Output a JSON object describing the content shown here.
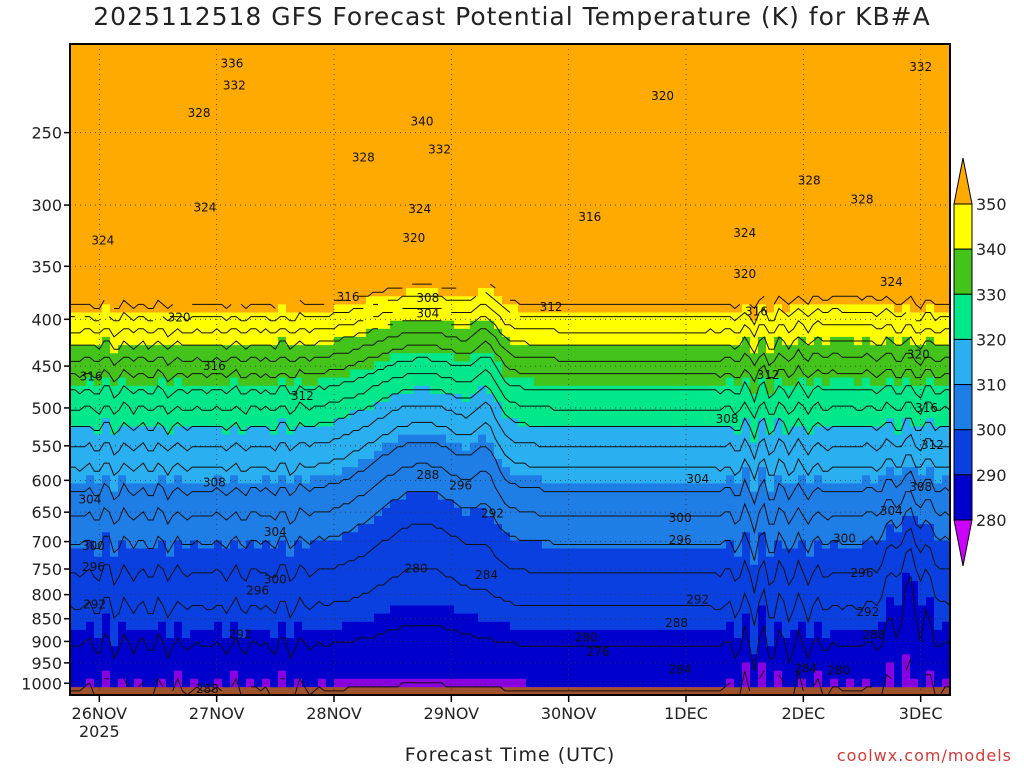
{
  "chart_data": {
    "type": "heatmap",
    "title": "2025112518 GFS Forecast Potential Temperature (K) for KB#A",
    "xlabel": "Forecast Time (UTC)",
    "ylabel": "",
    "x_ticks": [
      {
        "label": "26NOV",
        "sublabel": "2025",
        "day": 0
      },
      {
        "label": "27NOV",
        "day": 1
      },
      {
        "label": "28NOV",
        "day": 2
      },
      {
        "label": "29NOV",
        "day": 3
      },
      {
        "label": "30NOV",
        "day": 4
      },
      {
        "label": "1DEC",
        "day": 5
      },
      {
        "label": "2DEC",
        "day": 6
      },
      {
        "label": "3DEC",
        "day": 7
      }
    ],
    "x_range_days": [
      -0.25,
      7.25
    ],
    "y_axis": {
      "scale": "log-pressure",
      "unit": "hPa",
      "range": [
        1030,
        200
      ],
      "reversed": true,
      "ticks": [
        250,
        300,
        350,
        400,
        450,
        500,
        550,
        600,
        650,
        700,
        750,
        800,
        850,
        900,
        950,
        1000
      ]
    },
    "colorbar": {
      "levels": [
        280,
        290,
        300,
        310,
        320,
        330,
        340,
        350
      ],
      "colors": [
        "#cc00ff",
        "#8a00e0",
        "#0000cc",
        "#0a3fe0",
        "#1f7ee6",
        "#2ab0f0",
        "#00e88a",
        "#44c41a",
        "#ffff00",
        "#ffaa00"
      ],
      "extend": "both"
    },
    "contour_interval_k": 4,
    "contour_labels": [
      {
        "text": "336",
        "day": 1.13,
        "p": 210
      },
      {
        "text": "332",
        "day": 1.15,
        "p": 222
      },
      {
        "text": "328",
        "day": 0.85,
        "p": 238
      },
      {
        "text": "324",
        "day": 0.03,
        "p": 328
      },
      {
        "text": "324",
        "day": 0.9,
        "p": 302
      },
      {
        "text": "320",
        "day": 0.68,
        "p": 398
      },
      {
        "text": "316",
        "day": -0.07,
        "p": 462
      },
      {
        "text": "316",
        "day": 0.98,
        "p": 450
      },
      {
        "text": "312",
        "day": 1.73,
        "p": 485
      },
      {
        "text": "316",
        "day": 2.12,
        "p": 378
      },
      {
        "text": "308",
        "day": 0.98,
        "p": 603
      },
      {
        "text": "304",
        "day": -0.08,
        "p": 630
      },
      {
        "text": "304",
        "day": 1.5,
        "p": 683
      },
      {
        "text": "300",
        "day": -0.05,
        "p": 708
      },
      {
        "text": "296",
        "day": -0.05,
        "p": 746
      },
      {
        "text": "296",
        "day": 1.35,
        "p": 792
      },
      {
        "text": "300",
        "day": 1.5,
        "p": 770
      },
      {
        "text": "292",
        "day": -0.04,
        "p": 820
      },
      {
        "text": "292",
        "day": 1.2,
        "p": 885
      },
      {
        "text": "288",
        "day": 0.92,
        "p": 1015
      },
      {
        "text": "328",
        "day": 2.25,
        "p": 266
      },
      {
        "text": "332",
        "day": 2.9,
        "p": 261
      },
      {
        "text": "340",
        "day": 2.75,
        "p": 243
      },
      {
        "text": "324",
        "day": 2.73,
        "p": 303
      },
      {
        "text": "320",
        "day": 2.68,
        "p": 326
      },
      {
        "text": "308",
        "day": 2.8,
        "p": 379
      },
      {
        "text": "304",
        "day": 2.8,
        "p": 394
      },
      {
        "text": "288",
        "day": 2.8,
        "p": 592
      },
      {
        "text": "296",
        "day": 3.08,
        "p": 608
      },
      {
        "text": "292",
        "day": 3.35,
        "p": 652
      },
      {
        "text": "280",
        "day": 2.7,
        "p": 749
      },
      {
        "text": "284",
        "day": 3.3,
        "p": 761
      },
      {
        "text": "320",
        "day": 4.8,
        "p": 228
      },
      {
        "text": "316",
        "day": 4.18,
        "p": 309
      },
      {
        "text": "312",
        "day": 3.85,
        "p": 388
      },
      {
        "text": "304",
        "day": 5.1,
        "p": 598
      },
      {
        "text": "308",
        "day": 5.35,
        "p": 514
      },
      {
        "text": "300",
        "day": 4.95,
        "p": 660
      },
      {
        "text": "296",
        "day": 4.95,
        "p": 697
      },
      {
        "text": "292",
        "day": 5.1,
        "p": 810
      },
      {
        "text": "288",
        "day": 4.92,
        "p": 859
      },
      {
        "text": "280",
        "day": 4.15,
        "p": 891
      },
      {
        "text": "276",
        "day": 4.25,
        "p": 924
      },
      {
        "text": "284",
        "day": 4.95,
        "p": 966
      },
      {
        "text": "328",
        "day": 6.05,
        "p": 282
      },
      {
        "text": "324",
        "day": 5.5,
        "p": 322
      },
      {
        "text": "320",
        "day": 5.5,
        "p": 357
      },
      {
        "text": "316",
        "day": 5.6,
        "p": 392
      },
      {
        "text": "312",
        "day": 5.7,
        "p": 460
      },
      {
        "text": "332",
        "day": 7.0,
        "p": 212
      },
      {
        "text": "328",
        "day": 6.5,
        "p": 296
      },
      {
        "text": "324",
        "day": 6.75,
        "p": 364
      },
      {
        "text": "320",
        "day": 6.98,
        "p": 437
      },
      {
        "text": "316",
        "day": 7.05,
        "p": 500
      },
      {
        "text": "312",
        "day": 7.1,
        "p": 549
      },
      {
        "text": "308",
        "day": 7.0,
        "p": 610
      },
      {
        "text": "304",
        "day": 6.75,
        "p": 648
      },
      {
        "text": "300",
        "day": 6.35,
        "p": 695
      },
      {
        "text": "296",
        "day": 6.5,
        "p": 758
      },
      {
        "text": "292",
        "day": 6.55,
        "p": 836
      },
      {
        "text": "288",
        "day": 6.6,
        "p": 886
      },
      {
        "text": "284",
        "day": 6.02,
        "p": 963
      },
      {
        "text": "280",
        "day": 6.3,
        "p": 968
      }
    ]
  },
  "credit": "coolwx.com/models"
}
